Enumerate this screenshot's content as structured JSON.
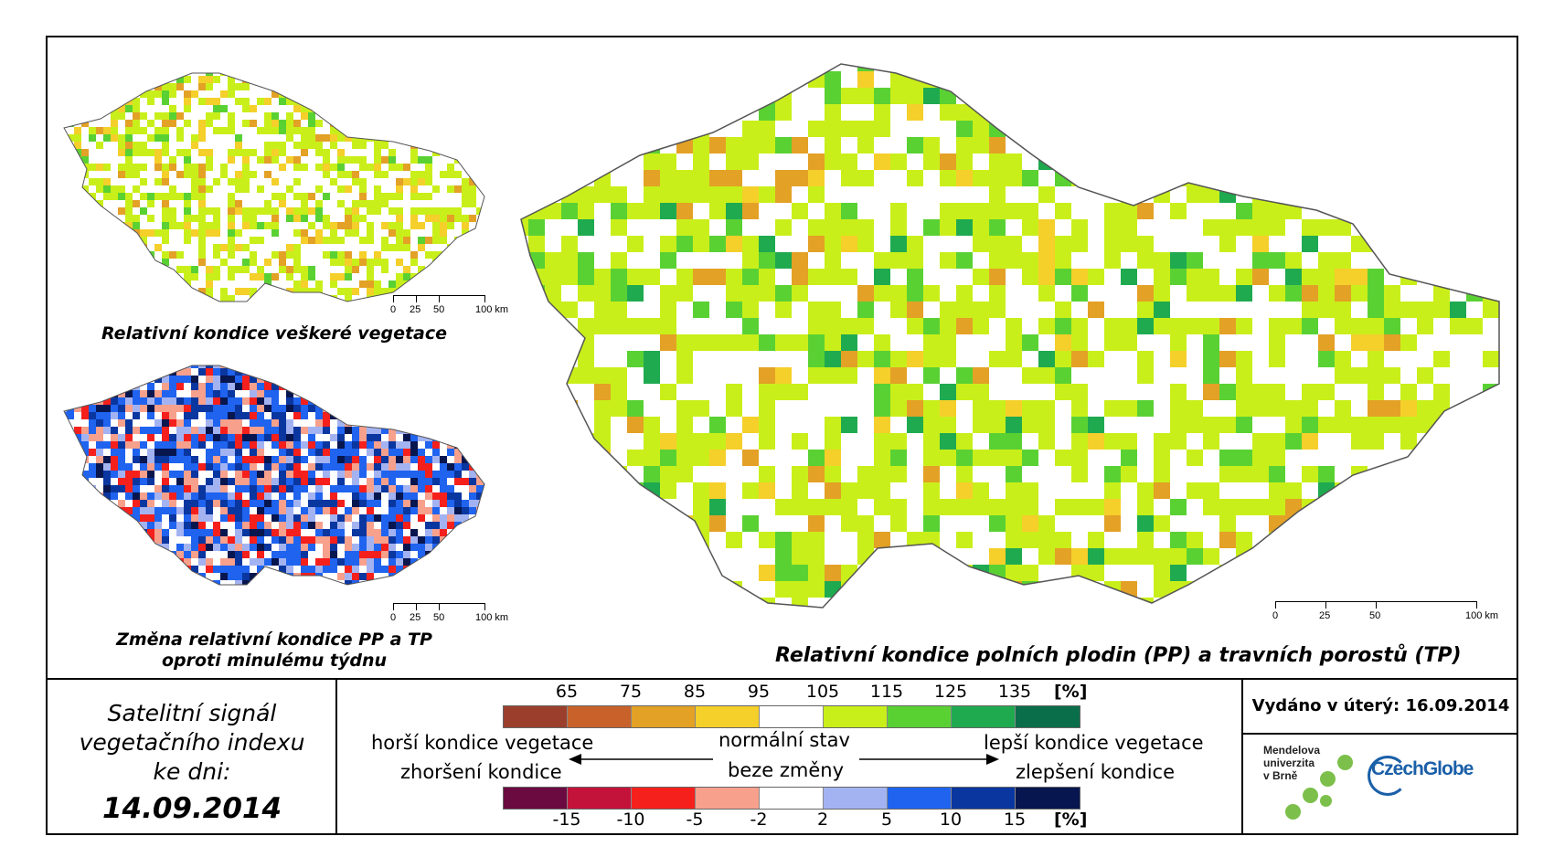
{
  "maps": {
    "main_caption": "Relativní kondice polních plodin (PP) a travních porostů (TP)",
    "top_left_caption": "Relativní kondice veškeré vegetace",
    "bottom_left_caption_line1": "Změna relativní kondice PP a TP",
    "bottom_left_caption_line2": "oproti minulému týdnu",
    "scale_labels": [
      "0",
      "25",
      "50",
      "100 km"
    ]
  },
  "info": {
    "line1": "Satelitní signál",
    "line2": "vegetačního indexu",
    "line3": "ke dni:",
    "date": "14.09.2014"
  },
  "legend": {
    "unit": "[%]",
    "top_values": [
      "65",
      "75",
      "85",
      "95",
      "105",
      "115",
      "125",
      "135"
    ],
    "top_colors": [
      "#9b3f2c",
      "#c8622a",
      "#e3a126",
      "#f5cf2a",
      "#ffffff",
      "#c9ef1a",
      "#5ad133",
      "#1faa50",
      "#0b6e4a"
    ],
    "bottom_values": [
      "-15",
      "-10",
      "-5",
      "-2",
      "2",
      "5",
      "10",
      "15"
    ],
    "bottom_colors": [
      "#6b0a41",
      "#c4133b",
      "#f5201c",
      "#f7a08c",
      "#ffffff",
      "#a3b3f2",
      "#1f63ef",
      "#0a36a0",
      "#07164f"
    ],
    "worse_label": "horší kondice vegetace",
    "worse_change": "zhoršení kondice",
    "normal_label": "normální stav",
    "normal_change": "beze změny",
    "better_label": "lepší kondice vegetace",
    "better_change": "zlepšení kondice"
  },
  "issued": "Vydáno v úterý: 16.09.2014",
  "logos": {
    "mendel_line1": "Mendelova",
    "mendel_line2": "univerzita",
    "mendel_line3": "v Brně",
    "czechglobe": "CzechGlobe"
  }
}
